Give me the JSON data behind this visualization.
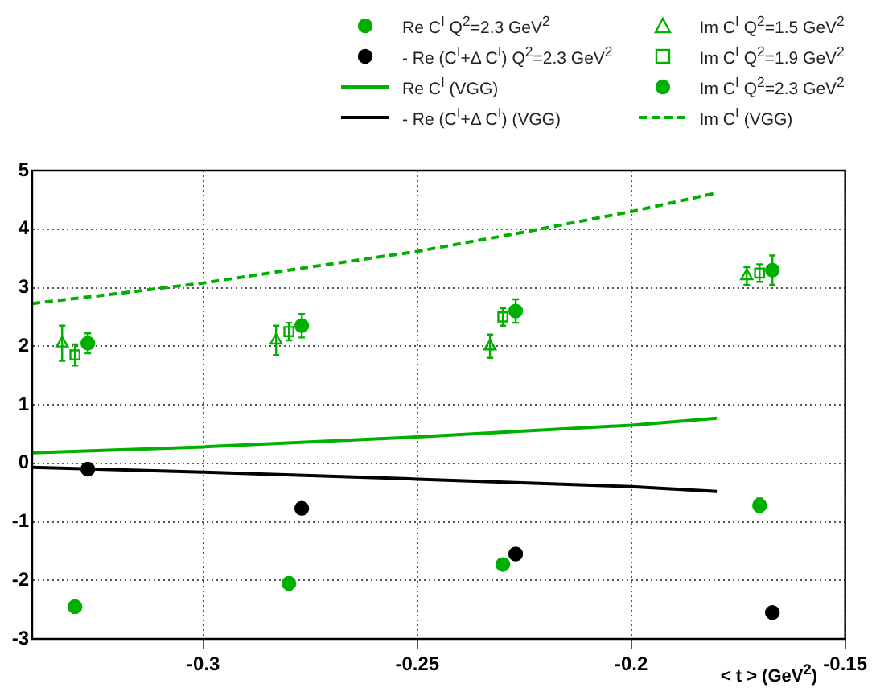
{
  "chart_data": {
    "type": "scatter",
    "xlabel": "< t > (GeV$^{2}$)",
    "xlim": [
      -0.34,
      -0.15
    ],
    "xticks": [
      -0.3,
      -0.25,
      -0.2,
      -0.15
    ],
    "ylim": [
      -3,
      5
    ],
    "yticks": [
      -3,
      -2,
      -1,
      0,
      1,
      2,
      3,
      4,
      5
    ],
    "grid": true,
    "legend": "top",
    "series": [
      {
        "name": "Re C$^{I}$  Q$^{2}$=2.3 GeV$^{2}$",
        "marker": "circle",
        "color": "#00b000",
        "x": [
          -0.33,
          -0.28,
          -0.23,
          -0.17
        ],
        "values": [
          -2.45,
          -2.05,
          -1.73,
          -0.72
        ],
        "errors": [
          0.1,
          0.1,
          0.1,
          0.12
        ]
      },
      {
        "name": "- Re (C$^{I}$+Δ C$^{I}$)  Q$^{2}$=2.3 GeV$^{2}$",
        "marker": "circle",
        "color": "#000000",
        "x": [
          -0.327,
          -0.277,
          -0.227,
          -0.167
        ],
        "values": [
          -0.1,
          -0.77,
          -1.55,
          -2.55
        ]
      },
      {
        "name": "Re C$^{I}$  (VGG)",
        "type": "line",
        "marker": "none",
        "line_style": "solid",
        "color": "#00b000",
        "x": [
          -0.34,
          -0.3,
          -0.25,
          -0.2,
          -0.18
        ],
        "values": [
          0.18,
          0.28,
          0.45,
          0.65,
          0.77
        ]
      },
      {
        "name": "- Re (C$^{I}$+Δ C$^{I}$) (VGG)",
        "type": "line",
        "marker": "none",
        "line_style": "solid",
        "color": "#000000",
        "x": [
          -0.34,
          -0.3,
          -0.25,
          -0.2,
          -0.18
        ],
        "values": [
          -0.07,
          -0.15,
          -0.27,
          -0.4,
          -0.48
        ]
      },
      {
        "name": "Im C$^{I}$  Q$^{2}$=1.5 GeV$^{2}$",
        "marker": "triangle",
        "color": "#00b000",
        "x": [
          -0.333,
          -0.283,
          -0.233,
          -0.173
        ],
        "values": [
          2.05,
          2.1,
          2.0,
          3.2
        ],
        "errors": [
          0.3,
          0.25,
          0.2,
          0.15
        ]
      },
      {
        "name": "Im C$^{I}$  Q$^{2}$=1.9 GeV$^{2}$",
        "marker": "square",
        "color": "#00b000",
        "x": [
          -0.33,
          -0.28,
          -0.23,
          -0.17
        ],
        "values": [
          1.85,
          2.25,
          2.5,
          3.25
        ],
        "errors": [
          0.18,
          0.15,
          0.15,
          0.15
        ]
      },
      {
        "name": "Im C$^{I}$  Q$^{2}$=2.3 GeV$^{2}$",
        "marker": "circle",
        "color": "#00b000",
        "x": [
          -0.327,
          -0.277,
          -0.227,
          -0.167
        ],
        "values": [
          2.05,
          2.35,
          2.6,
          3.3
        ],
        "errors": [
          0.17,
          0.2,
          0.2,
          0.25
        ]
      },
      {
        "name": "Im C$^{I}$ (VGG)",
        "type": "line",
        "marker": "none",
        "line_style": "dashed",
        "color": "#00b000",
        "x": [
          -0.34,
          -0.32,
          -0.3,
          -0.28,
          -0.25,
          -0.225,
          -0.2,
          -0.18
        ],
        "values": [
          2.73,
          2.9,
          3.08,
          3.3,
          3.62,
          3.95,
          4.3,
          4.62
        ]
      }
    ]
  }
}
